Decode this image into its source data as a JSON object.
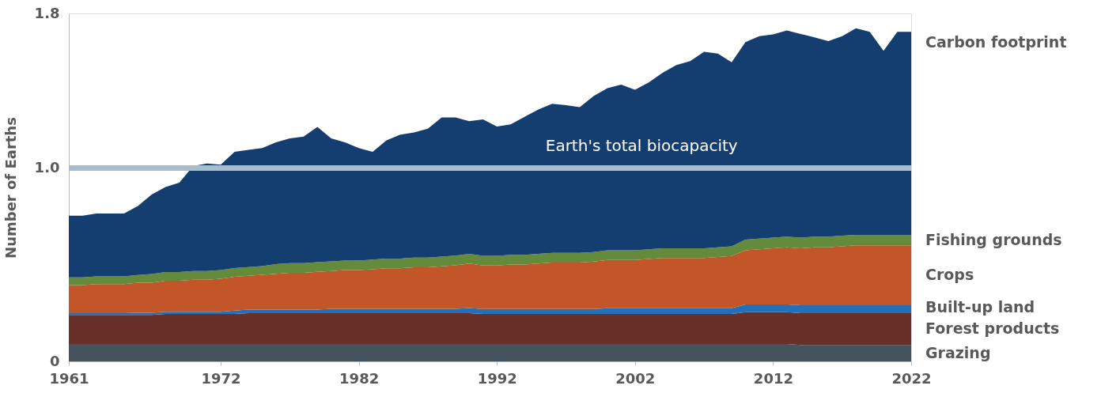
{
  "chart_data": {
    "type": "area",
    "stacked": true,
    "ylabel": "Number of Earths",
    "grid": false,
    "x": [
      1961,
      1962,
      1963,
      1964,
      1965,
      1966,
      1967,
      1968,
      1969,
      1970,
      1971,
      1972,
      1973,
      1974,
      1975,
      1976,
      1977,
      1978,
      1979,
      1980,
      1981,
      1982,
      1983,
      1984,
      1985,
      1986,
      1987,
      1988,
      1989,
      1990,
      1991,
      1992,
      1993,
      1994,
      1995,
      1996,
      1997,
      1998,
      1999,
      2000,
      2001,
      2002,
      2003,
      2004,
      2005,
      2006,
      2007,
      2008,
      2009,
      2010,
      2011,
      2012,
      2013,
      2014,
      2015,
      2016,
      2017,
      2018,
      2019,
      2020,
      2021,
      2022
    ],
    "xlim": [
      1961,
      2022
    ],
    "xticks": [
      1961,
      1972,
      1982,
      1992,
      2002,
      2012,
      2022
    ],
    "ylim": [
      0,
      1.8
    ],
    "yticks": [
      0,
      {
        "value": 1,
        "label": "1.0"
      },
      1.8
    ],
    "series": [
      {
        "name": "Grazing",
        "color": "#44535d",
        "values": [
          0.09,
          0.09,
          0.09,
          0.09,
          0.09,
          0.09,
          0.09,
          0.09,
          0.09,
          0.09,
          0.09,
          0.09,
          0.09,
          0.09,
          0.09,
          0.09,
          0.09,
          0.09,
          0.09,
          0.09,
          0.09,
          0.09,
          0.09,
          0.09,
          0.09,
          0.09,
          0.09,
          0.09,
          0.09,
          0.09,
          0.09,
          0.09,
          0.09,
          0.09,
          0.09,
          0.09,
          0.09,
          0.09,
          0.09,
          0.09,
          0.09,
          0.09,
          0.09,
          0.09,
          0.09,
          0.09,
          0.09,
          0.09,
          0.09,
          0.09,
          0.09,
          0.09,
          0.09,
          0.085,
          0.085,
          0.085,
          0.085,
          0.085,
          0.085,
          0.085,
          0.085,
          0.085
        ]
      },
      {
        "name": "Forest products",
        "color": "#69302a",
        "values": [
          0.15,
          0.15,
          0.15,
          0.15,
          0.15,
          0.15,
          0.15,
          0.155,
          0.155,
          0.155,
          0.155,
          0.155,
          0.155,
          0.16,
          0.16,
          0.16,
          0.16,
          0.16,
          0.16,
          0.16,
          0.16,
          0.16,
          0.16,
          0.16,
          0.16,
          0.16,
          0.16,
          0.16,
          0.16,
          0.16,
          0.155,
          0.155,
          0.155,
          0.155,
          0.155,
          0.155,
          0.155,
          0.155,
          0.155,
          0.155,
          0.155,
          0.155,
          0.155,
          0.155,
          0.155,
          0.155,
          0.155,
          0.155,
          0.155,
          0.165,
          0.165,
          0.165,
          0.165,
          0.165,
          0.165,
          0.165,
          0.165,
          0.165,
          0.165,
          0.165,
          0.165,
          0.165
        ]
      },
      {
        "name": "Built-up land",
        "color": "#2470b8",
        "values": [
          0.01,
          0.01,
          0.01,
          0.01,
          0.01,
          0.012,
          0.012,
          0.012,
          0.012,
          0.012,
          0.012,
          0.012,
          0.018,
          0.018,
          0.018,
          0.018,
          0.018,
          0.018,
          0.018,
          0.022,
          0.022,
          0.022,
          0.022,
          0.022,
          0.022,
          0.022,
          0.022,
          0.022,
          0.022,
          0.026,
          0.026,
          0.026,
          0.026,
          0.026,
          0.026,
          0.026,
          0.026,
          0.026,
          0.026,
          0.03,
          0.03,
          0.03,
          0.03,
          0.03,
          0.03,
          0.03,
          0.03,
          0.03,
          0.03,
          0.04,
          0.04,
          0.04,
          0.04,
          0.04,
          0.04,
          0.04,
          0.04,
          0.04,
          0.04,
          0.04,
          0.04,
          0.04
        ]
      },
      {
        "name": "Crops",
        "color": "#c25628",
        "values": [
          0.145,
          0.145,
          0.15,
          0.15,
          0.15,
          0.155,
          0.155,
          0.16,
          0.16,
          0.165,
          0.165,
          0.17,
          0.175,
          0.175,
          0.18,
          0.185,
          0.19,
          0.19,
          0.195,
          0.195,
          0.2,
          0.2,
          0.205,
          0.21,
          0.21,
          0.215,
          0.215,
          0.22,
          0.225,
          0.23,
          0.225,
          0.225,
          0.23,
          0.23,
          0.235,
          0.24,
          0.24,
          0.24,
          0.245,
          0.25,
          0.25,
          0.25,
          0.255,
          0.26,
          0.26,
          0.26,
          0.26,
          0.265,
          0.27,
          0.28,
          0.285,
          0.29,
          0.295,
          0.295,
          0.3,
          0.3,
          0.305,
          0.31,
          0.31,
          0.31,
          0.31,
          0.31
        ]
      },
      {
        "name": "Fishing grounds",
        "color": "#648b3c",
        "values": [
          0.04,
          0.04,
          0.04,
          0.04,
          0.04,
          0.04,
          0.045,
          0.045,
          0.045,
          0.045,
          0.045,
          0.045,
          0.045,
          0.045,
          0.045,
          0.05,
          0.05,
          0.05,
          0.05,
          0.05,
          0.05,
          0.05,
          0.05,
          0.05,
          0.05,
          0.05,
          0.05,
          0.05,
          0.05,
          0.05,
          0.05,
          0.05,
          0.05,
          0.05,
          0.05,
          0.05,
          0.05,
          0.05,
          0.05,
          0.05,
          0.05,
          0.05,
          0.05,
          0.05,
          0.05,
          0.05,
          0.05,
          0.05,
          0.05,
          0.055,
          0.055,
          0.055,
          0.055,
          0.055,
          0.055,
          0.055,
          0.055,
          0.055,
          0.055,
          0.055,
          0.055,
          0.055
        ]
      },
      {
        "name": "Carbon footprint",
        "color": "#153e70",
        "values": [
          0.319,
          0.319,
          0.325,
          0.325,
          0.325,
          0.357,
          0.411,
          0.44,
          0.463,
          0.543,
          0.557,
          0.546,
          0.601,
          0.606,
          0.611,
          0.63,
          0.646,
          0.655,
          0.7,
          0.637,
          0.611,
          0.582,
          0.557,
          0.611,
          0.641,
          0.647,
          0.667,
          0.72,
          0.715,
          0.687,
          0.706,
          0.669,
          0.675,
          0.714,
          0.747,
          0.772,
          0.764,
          0.754,
          0.806,
          0.838,
          0.857,
          0.83,
          0.863,
          0.908,
          0.948,
          0.969,
          1.017,
          1.002,
          0.952,
          1.022,
          1.047,
          1.052,
          1.067,
          1.054,
          1.031,
          1.012,
          1.032,
          1.068,
          1.05,
          0.952,
          1.05,
          1.05
        ]
      }
    ],
    "ref_lines": [
      {
        "axis": "y",
        "value": 1,
        "label": "Earth's total biocapacity",
        "color": "#a8bccb"
      }
    ]
  }
}
